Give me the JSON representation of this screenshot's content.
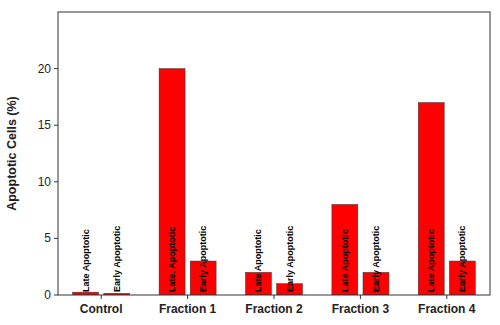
{
  "chart_data": {
    "type": "bar",
    "categories": [
      "Control",
      "Fraction 1",
      "Fraction 2",
      "Fraction 3",
      "Fraction 4"
    ],
    "series": [
      {
        "values": [
          0.25,
          20,
          2,
          8,
          17
        ],
        "color": "#FF0000",
        "labels": [
          "Late Apoptotic",
          "Late. Apoptotic",
          "Late Apoptotic",
          "Late Apoptotic",
          "Late Apoptotic"
        ]
      },
      {
        "values": [
          0.15,
          3,
          1,
          2,
          3
        ],
        "color": "#FF0000",
        "labels": [
          "Early Apoptotic",
          "Early Apoptotic",
          "Early Apoptotic",
          "Early Apoptotic",
          "Early Apoptotic"
        ]
      }
    ],
    "y_label": "Apoptotic Cells (%)",
    "ylim": [
      0,
      25
    ],
    "yticks": [
      0,
      5,
      10,
      15,
      20
    ],
    "grid": false
  }
}
